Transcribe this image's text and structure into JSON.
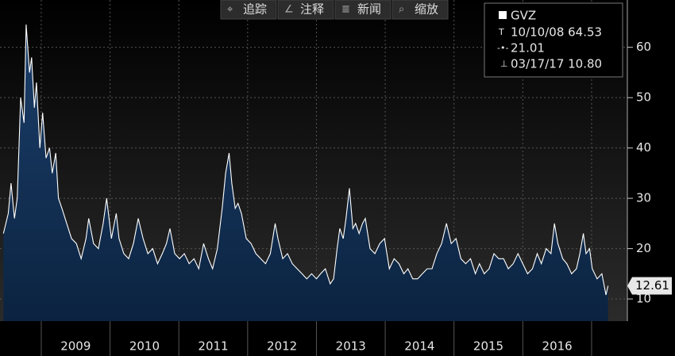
{
  "toolbar": [
    "追踪",
    "注释",
    "新闻",
    "缩放"
  ],
  "chart_data": {
    "type": "area",
    "legend": {
      "name": "GVZ",
      "high": "10/10/08 64.53",
      "average": 21.01,
      "low": "03/17/17 10.80"
    },
    "series": [
      {
        "name": "GVZ",
        "color": "#ffffff",
        "x": [
          2008.45,
          2008.52,
          2008.56,
          2008.61,
          2008.65,
          2008.7,
          2008.75,
          2008.78,
          2008.83,
          2008.86,
          2008.9,
          2008.93,
          2008.98,
          2009.02,
          2009.07,
          2009.12,
          2009.16,
          2009.21,
          2009.25,
          2009.3,
          2009.37,
          2009.44,
          2009.51,
          2009.58,
          2009.65,
          2009.69,
          2009.76,
          2009.83,
          2009.9,
          2009.95,
          2010.02,
          2010.09,
          2010.13,
          2010.2,
          2010.27,
          2010.34,
          2010.41,
          2010.48,
          2010.55,
          2010.62,
          2010.69,
          2010.76,
          2010.82,
          2010.87,
          2010.94,
          2011.01,
          2011.08,
          2011.15,
          2011.22,
          2011.29,
          2011.36,
          2011.43,
          2011.49,
          2011.56,
          2011.63,
          2011.68,
          2011.73,
          2011.77,
          2011.82,
          2011.86,
          2011.91,
          2011.98,
          2012.05,
          2012.12,
          2012.19,
          2012.26,
          2012.33,
          2012.4,
          2012.44,
          2012.51,
          2012.58,
          2012.65,
          2012.72,
          2012.79,
          2012.86,
          2012.93,
          2013.0,
          2013.06,
          2013.13,
          2013.2,
          2013.25,
          2013.3,
          2013.34,
          2013.39,
          2013.43,
          2013.48,
          2013.53,
          2013.57,
          2013.62,
          2013.67,
          2013.71,
          2013.78,
          2013.85,
          2013.92,
          2013.99,
          2014.06,
          2014.13,
          2014.2,
          2014.27,
          2014.33,
          2014.4,
          2014.47,
          2014.54,
          2014.61,
          2014.68,
          2014.75,
          2014.82,
          2014.89,
          2014.96,
          2015.03,
          2015.1,
          2015.17,
          2015.24,
          2015.31,
          2015.37,
          2015.44,
          2015.51,
          2015.58,
          2015.65,
          2015.72,
          2015.79,
          2015.86,
          2015.93,
          2016.0,
          2016.07,
          2016.14,
          2016.21,
          2016.27,
          2016.34,
          2016.41,
          2016.46,
          2016.51,
          2016.58,
          2016.64,
          2016.71,
          2016.78,
          2016.83,
          2016.88,
          2016.92,
          2016.97,
          2017.01,
          2017.08,
          2017.15,
          2017.21,
          2017.24
        ],
        "values": [
          23,
          27,
          33,
          26,
          30,
          50,
          45,
          64.53,
          55,
          58,
          48,
          53,
          40,
          47,
          38,
          40,
          35,
          39,
          30,
          28,
          25,
          22,
          21,
          18,
          22,
          26,
          21,
          20,
          25,
          30,
          22,
          27,
          22,
          19,
          18,
          21,
          26,
          22,
          19,
          20,
          17,
          19,
          21,
          24,
          19,
          18,
          19,
          17,
          18,
          16,
          21,
          18,
          16,
          20,
          28,
          35,
          39,
          33,
          28,
          29,
          27,
          22,
          21,
          19,
          18,
          17,
          19,
          25,
          22,
          18,
          19,
          17,
          16,
          15,
          14,
          15,
          14,
          15,
          16,
          13,
          14,
          20,
          24,
          22,
          26,
          32,
          24,
          25,
          23,
          25,
          26,
          20,
          19,
          21,
          22,
          16,
          18,
          17,
          15,
          16,
          14,
          14,
          15,
          16,
          16,
          19,
          21,
          25,
          21,
          22,
          18,
          17,
          18,
          15,
          17,
          15,
          16,
          19,
          18,
          18,
          16,
          17,
          19,
          17,
          15,
          16,
          19,
          17,
          20,
          19,
          25,
          21,
          18,
          17,
          15,
          16,
          19,
          23,
          19,
          20,
          16,
          14,
          15,
          10.8,
          12.61
        ]
      }
    ],
    "xlim": [
      2008.4,
      2017.52
    ],
    "ylim": [
      5.6,
      69.4
    ],
    "yticks": [
      10,
      20,
      30,
      40,
      50,
      60
    ],
    "xgrid": [
      2009,
      2010,
      2011,
      2012,
      2013,
      2014,
      2015,
      2016,
      2017
    ],
    "xticks": [
      {
        "value": 2009.5,
        "label": "2009"
      },
      {
        "value": 2010.5,
        "label": "2010"
      },
      {
        "value": 2011.5,
        "label": "2011"
      },
      {
        "value": 2012.5,
        "label": "2012"
      },
      {
        "value": 2013.5,
        "label": "2013"
      },
      {
        "value": 2014.5,
        "label": "2014"
      },
      {
        "value": 2015.5,
        "label": "2015"
      },
      {
        "value": 2016.5,
        "label": "2016"
      }
    ],
    "grid": true
  }
}
